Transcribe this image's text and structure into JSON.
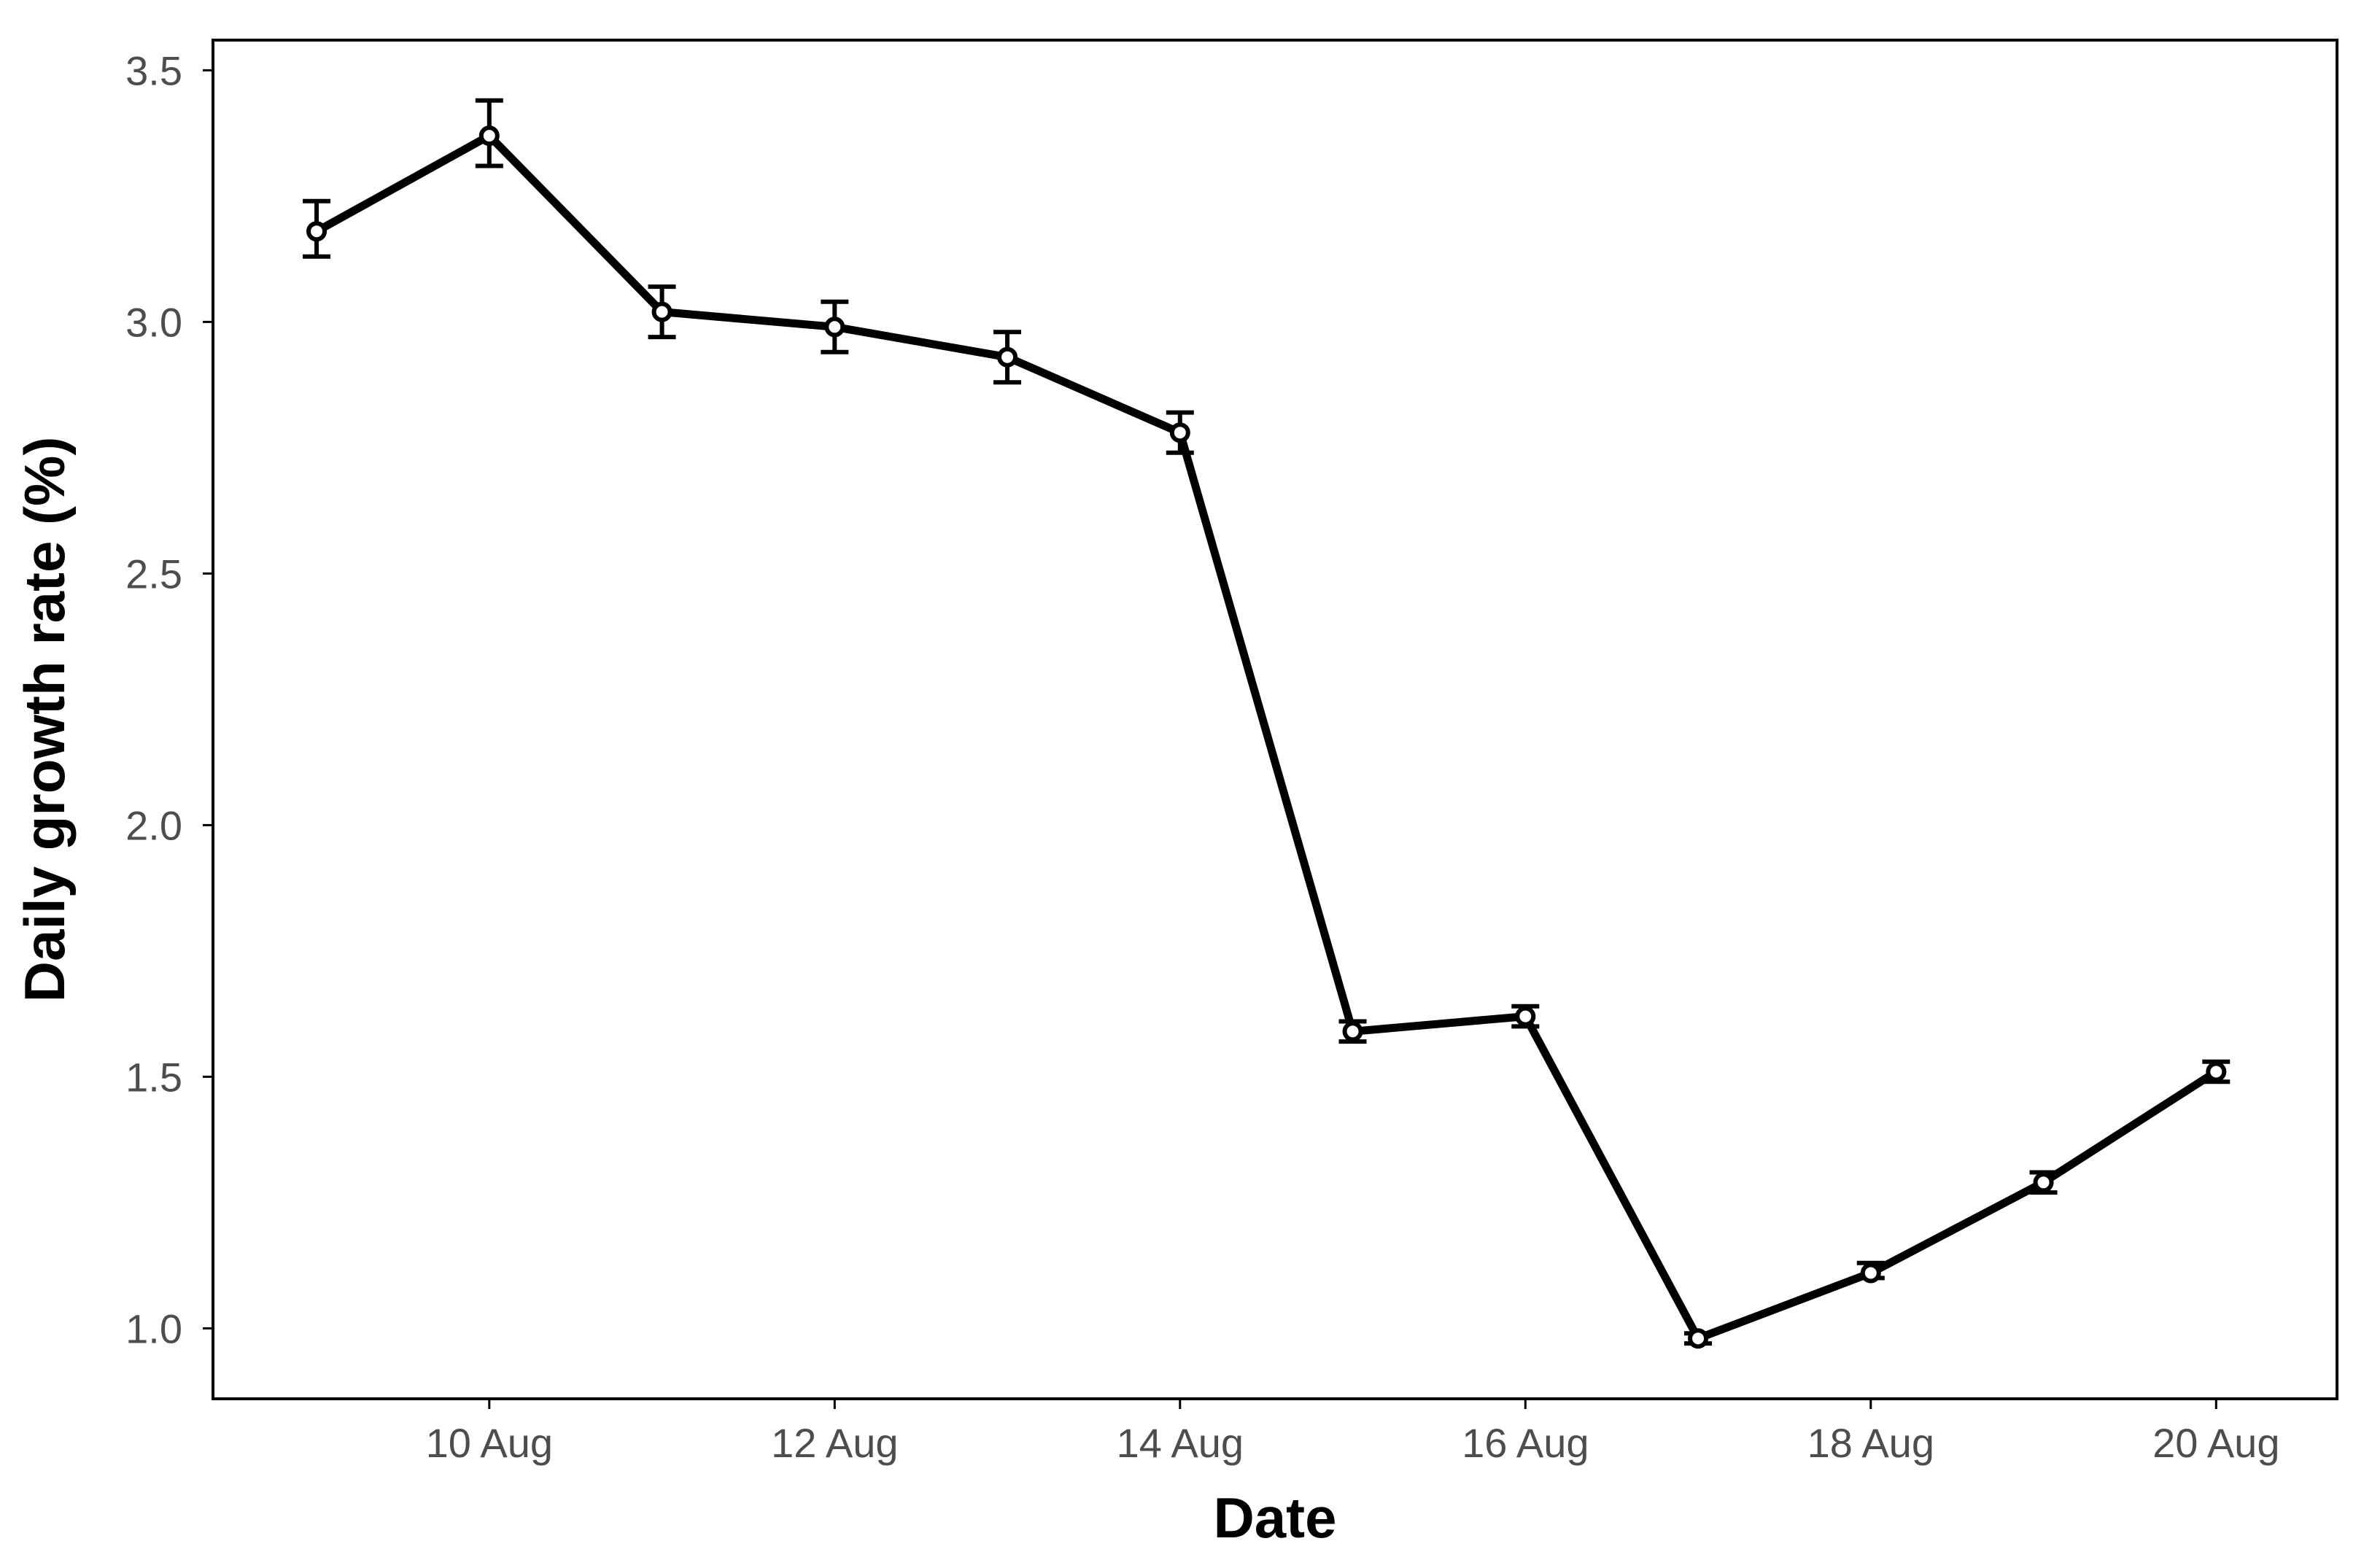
{
  "chart_data": {
    "type": "line",
    "title": "",
    "xlabel": "Date",
    "ylabel": "Daily growth rate (%)",
    "x": [
      "9 Aug",
      "10 Aug",
      "11 Aug",
      "12 Aug",
      "13 Aug",
      "14 Aug",
      "15 Aug",
      "16 Aug",
      "17 Aug",
      "18 Aug",
      "19 Aug",
      "20 Aug"
    ],
    "series": [
      {
        "name": "",
        "values": [
          3.18,
          3.37,
          3.02,
          2.99,
          2.93,
          2.78,
          1.59,
          1.62,
          0.98,
          1.11,
          1.29,
          1.51
        ],
        "error_low": [
          3.13,
          3.31,
          2.97,
          2.94,
          2.88,
          2.74,
          1.57,
          1.6,
          0.97,
          1.1,
          1.27,
          1.49
        ],
        "error_high": [
          3.24,
          3.44,
          3.07,
          3.04,
          2.98,
          2.82,
          1.61,
          1.64,
          0.99,
          1.13,
          1.31,
          1.53
        ]
      }
    ],
    "x_ticks": [
      "10 Aug",
      "12 Aug",
      "14 Aug",
      "16 Aug",
      "18 Aug",
      "20 Aug"
    ],
    "y_ticks": [
      "1.0",
      "1.5",
      "2.0",
      "2.5",
      "3.0",
      "3.5"
    ],
    "xlim": [
      "8.4 Aug",
      "20.7 Aug"
    ],
    "ylim": [
      0.86,
      3.56
    ],
    "grid": false,
    "legend": "none",
    "line_color": "#000000"
  }
}
